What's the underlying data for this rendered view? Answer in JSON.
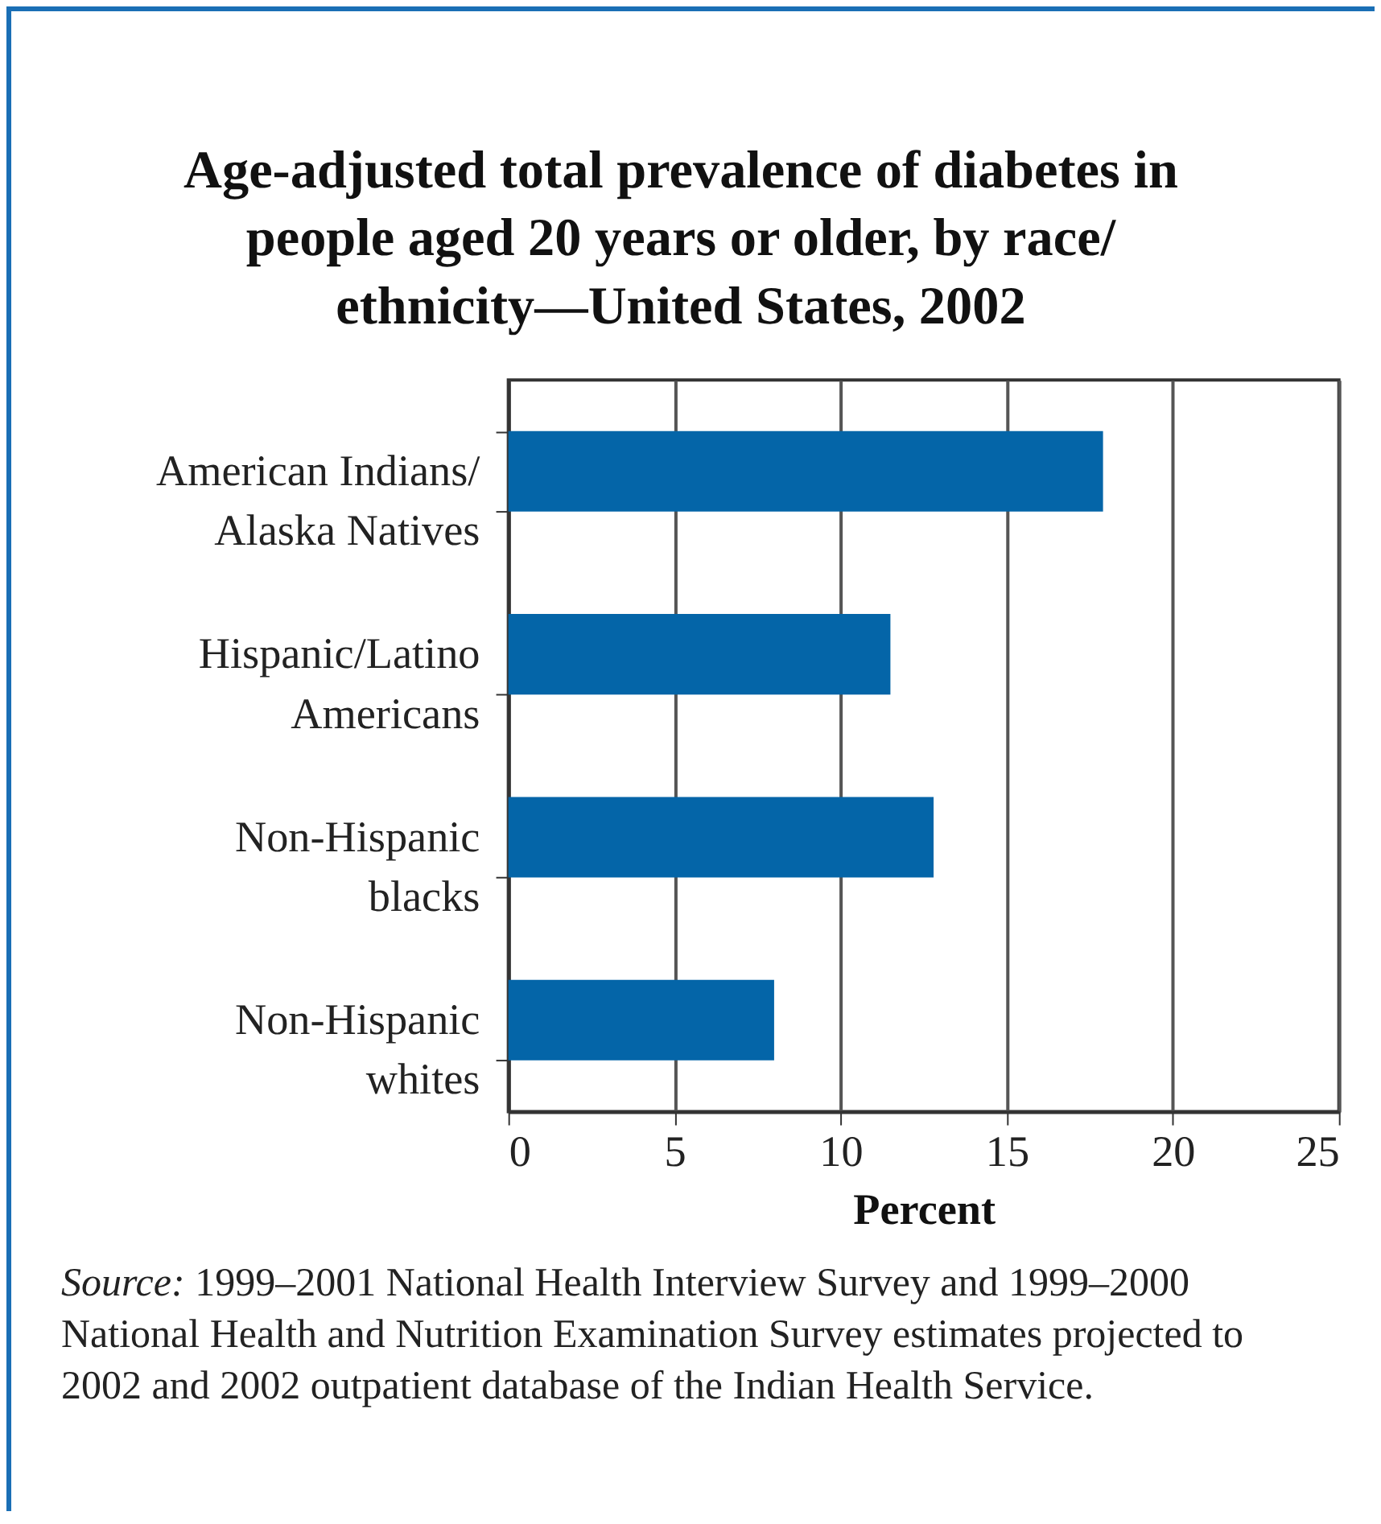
{
  "chart_data": {
    "type": "bar",
    "orientation": "horizontal",
    "title": "Age-adjusted total prevalence of diabetes in people aged 20 years or older, by race/ethnicity—United States, 2002",
    "categories": [
      "American Indians/Alaska Natives",
      "Hispanic/Latino Americans",
      "Non-Hispanic blacks",
      "Non-Hispanic whites"
    ],
    "values": [
      17.9,
      11.5,
      12.8,
      8.0
    ],
    "color": "#0465a8",
    "xlabel": "Percent",
    "xlim": [
      0,
      25
    ],
    "xticks": [
      0,
      5,
      10,
      15,
      20,
      25
    ],
    "grid": "x",
    "annotations": [
      "Source: 1999–2001 National Health Interview Survey and 1999–2000 National Health and Nutrition Examination Survey estimates projected to 2002 and 2002 outpatient database of the Indian Health Service."
    ]
  }
}
